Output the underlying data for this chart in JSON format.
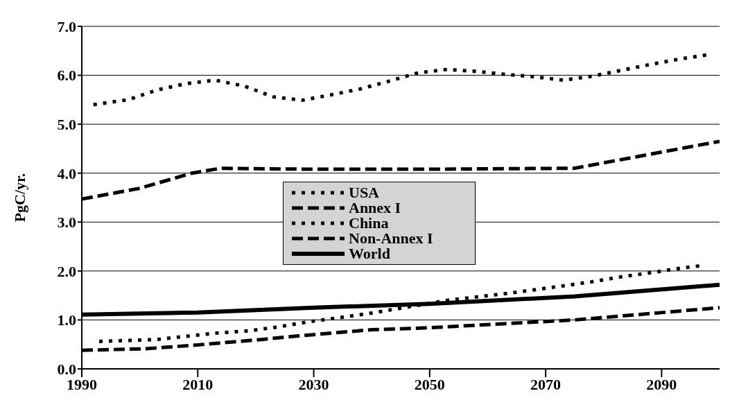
{
  "chart_data": {
    "type": "line",
    "ylabel": "PgC/yr.",
    "xlim": [
      1990,
      2100
    ],
    "xticks": [
      1990,
      2010,
      2030,
      2050,
      2070,
      2090
    ],
    "ylim": [
      0,
      7
    ],
    "yticks": [
      {
        "value": 0,
        "label": "0.0"
      },
      {
        "value": 1,
        "label": "1.0"
      },
      {
        "value": 2,
        "label": "2.0"
      },
      {
        "value": 3,
        "label": "3.0"
      },
      {
        "value": 4,
        "label": "4.0"
      },
      {
        "value": 5,
        "label": "5.0"
      },
      {
        "value": 6,
        "label": "6.0"
      },
      {
        "value": 7,
        "label": "7.0"
      }
    ],
    "grid": "y",
    "legend": "center",
    "marker": "none",
    "series": [
      {
        "name": "USA",
        "color": "#000000",
        "line_style": "dotted",
        "x": [
          1992,
          1998,
          2003,
          2008,
          2013,
          2018,
          2023,
          2028,
          2033,
          2038,
          2043,
          2048,
          2053,
          2058,
          2063,
          2068,
          2073,
          2078,
          2083,
          2088,
          2093,
          2098
        ],
        "values": [
          5.4,
          5.5,
          5.7,
          5.83,
          5.9,
          5.78,
          5.56,
          5.49,
          5.6,
          5.72,
          5.88,
          6.05,
          6.12,
          6.08,
          6.02,
          5.97,
          5.9,
          5.98,
          6.1,
          6.22,
          6.33,
          6.42
        ]
      },
      {
        "name": "Annex I",
        "color": "#000000",
        "line_style": "dashed",
        "x": [
          1990,
          2000,
          2009,
          2014,
          2020,
          2030,
          2050,
          2075,
          2100
        ],
        "values": [
          3.47,
          3.69,
          4.0,
          4.1,
          4.09,
          4.08,
          4.08,
          4.1,
          4.65
        ]
      },
      {
        "name": "China",
        "color": "#000000",
        "line_style": "dotted",
        "x": [
          1993,
          2003,
          2013,
          2019,
          2024,
          2029,
          2034,
          2040,
          2053,
          2064,
          2072,
          2078,
          2083,
          2089,
          2094,
          2097
        ],
        "values": [
          0.56,
          0.6,
          0.73,
          0.78,
          0.86,
          0.96,
          1.04,
          1.14,
          1.4,
          1.55,
          1.68,
          1.78,
          1.88,
          1.98,
          2.07,
          2.11
        ]
      },
      {
        "name": "Non-Annex I",
        "color": "#000000",
        "line_style": "dashed",
        "x": [
          1990,
          2001,
          2010,
          2021,
          2027,
          2040,
          2050,
          2075,
          2100
        ],
        "values": [
          0.38,
          0.41,
          0.49,
          0.6,
          0.67,
          0.8,
          0.84,
          1.0,
          1.25
        ]
      },
      {
        "name": "World",
        "color": "#000000",
        "line_style": "solid",
        "x": [
          1990,
          2010,
          2030,
          2050,
          2075,
          2100
        ],
        "values": [
          1.11,
          1.15,
          1.25,
          1.33,
          1.48,
          1.72
        ]
      }
    ]
  }
}
